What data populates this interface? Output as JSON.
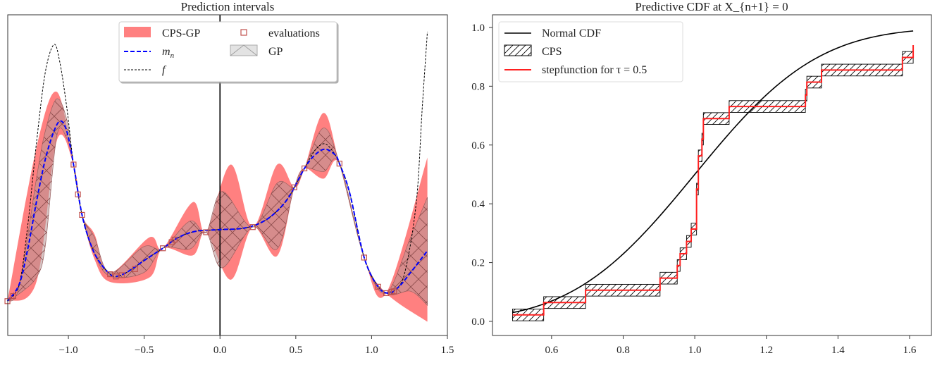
{
  "chart_data": [
    {
      "type": "line",
      "title": "Prediction intervals",
      "xlim": [
        -1.4,
        1.5
      ],
      "ylim": [
        0,
        100
      ],
      "xticks": [
        -1.0,
        -0.5,
        0.0,
        0.5,
        1.0,
        1.5
      ],
      "xtick_labels": [
        "−1.0",
        "−0.5",
        "0.0",
        "0.5",
        "1.0",
        "1.5"
      ],
      "yticks_shown": false,
      "vertical_line_at": 0.0,
      "legend": {
        "placement": "top-center",
        "labels": {
          "cps_gp": "CPS-GP",
          "mean": "m_n",
          "f": "f",
          "evaluations": "evaluations",
          "gp": "GP"
        }
      },
      "colors": {
        "cps_gp": "#ff8080",
        "mean": "#0000ff",
        "f": "#000000",
        "evaluations": "#c0504d",
        "gp_hatch": "#8a4a4a"
      },
      "cps_gp_band": [
        [
          -1.402,
          10.7,
          10.7
        ],
        [
          -1.211,
          16.7,
          58.5
        ],
        [
          -1.077,
          60.7,
          76.0
        ],
        [
          -0.966,
          53.3,
          53.3
        ],
        [
          -0.91,
          37.6,
          37.6
        ],
        [
          -0.828,
          23.8,
          31.6
        ],
        [
          -0.725,
          16.7,
          19.6
        ],
        [
          -0.465,
          18.1,
          30.6
        ],
        [
          -0.377,
          27.2,
          27.2
        ],
        [
          -0.178,
          25.0,
          41.6
        ],
        [
          -0.092,
          32.2,
          32.2
        ],
        [
          0.071,
          17.4,
          53.3
        ],
        [
          0.216,
          33.8,
          33.8
        ],
        [
          0.377,
          24.8,
          53.3
        ],
        [
          0.49,
          46.2,
          46.2
        ],
        [
          0.557,
          52.1,
          52.1
        ],
        [
          0.683,
          48.9,
          69.4
        ],
        [
          0.788,
          53.6,
          53.6
        ],
        [
          0.951,
          24.3,
          24.3
        ],
        [
          1.096,
          13.2,
          13.2
        ],
        [
          1.368,
          4.3,
          55.5
        ]
      ],
      "gp_band": [
        [
          -1.402,
          10.7,
          10.7
        ],
        [
          -1.325,
          13.0,
          15.2
        ],
        [
          -1.211,
          18.1,
          48.9
        ],
        [
          -1.153,
          27.7,
          63.6
        ],
        [
          -1.077,
          62.1,
          73.8
        ],
        [
          -1.01,
          61.4,
          67.2
        ],
        [
          -0.966,
          53.3,
          53.3
        ],
        [
          -0.91,
          37.6,
          37.6
        ],
        [
          -0.828,
          25.5,
          30.6
        ],
        [
          -0.725,
          18.5,
          19.6
        ],
        [
          -0.503,
          19.6,
          27.7
        ],
        [
          -0.377,
          27.2,
          27.2
        ],
        [
          -0.197,
          27.0,
          35.7
        ],
        [
          -0.092,
          32.2,
          32.2
        ],
        [
          0.014,
          21.1,
          44.9
        ],
        [
          0.216,
          33.8,
          33.8
        ],
        [
          0.377,
          27.0,
          47.5
        ],
        [
          0.49,
          46.2,
          46.2
        ],
        [
          0.557,
          52.1,
          52.1
        ],
        [
          0.683,
          51.1,
          64.7
        ],
        [
          0.788,
          53.6,
          53.6
        ],
        [
          0.951,
          24.3,
          24.3
        ],
        [
          1.096,
          13.2,
          13.2
        ],
        [
          1.257,
          13.8,
          30.6
        ],
        [
          1.368,
          9.4,
          43.1
        ]
      ],
      "mean": [
        [
          -1.402,
          10.7
        ],
        [
          -1.325,
          15.9
        ],
        [
          -1.268,
          27.0
        ],
        [
          -1.211,
          41.6
        ],
        [
          -1.153,
          54.8
        ],
        [
          -1.096,
          63.6
        ],
        [
          -1.052,
          66.9
        ],
        [
          -1.01,
          63.6
        ],
        [
          -0.966,
          53.3
        ],
        [
          -0.91,
          37.6
        ],
        [
          -0.847,
          27.7
        ],
        [
          -0.79,
          22.6
        ],
        [
          -0.725,
          19.1
        ],
        [
          -0.687,
          18.4
        ],
        [
          -0.618,
          19.6
        ],
        [
          -0.503,
          23.3
        ],
        [
          -0.377,
          27.2
        ],
        [
          -0.273,
          30.6
        ],
        [
          -0.159,
          32.5
        ],
        [
          -0.005,
          33.0
        ],
        [
          0.148,
          33.4
        ],
        [
          0.262,
          35.0
        ],
        [
          0.358,
          38.0
        ],
        [
          0.453,
          43.1
        ],
        [
          0.557,
          52.1
        ],
        [
          0.626,
          56.3
        ],
        [
          0.693,
          58.1
        ],
        [
          0.76,
          56.3
        ],
        [
          0.788,
          53.6
        ],
        [
          0.855,
          44.5
        ],
        [
          0.951,
          24.3
        ],
        [
          1.043,
          15.2
        ],
        [
          1.114,
          13.2
        ],
        [
          1.18,
          15.2
        ],
        [
          1.257,
          19.6
        ],
        [
          1.368,
          26.4
        ]
      ],
      "f": [
        [
          -1.402,
          10.7
        ],
        [
          -1.325,
          15.9
        ],
        [
          -1.268,
          34.3
        ],
        [
          -1.211,
          59.9
        ],
        [
          -1.153,
          81.9
        ],
        [
          -1.096,
          90.7
        ],
        [
          -1.058,
          85.6
        ],
        [
          -1.01,
          70.9
        ],
        [
          -0.966,
          53.3
        ],
        [
          -0.91,
          37.6
        ],
        [
          -0.847,
          27.7
        ],
        [
          -0.79,
          22.6
        ],
        [
          -0.725,
          19.1
        ],
        [
          -0.687,
          18.4
        ],
        [
          -0.618,
          19.6
        ],
        [
          -0.503,
          23.3
        ],
        [
          -0.377,
          27.2
        ],
        [
          -0.273,
          30.6
        ],
        [
          -0.159,
          32.5
        ],
        [
          -0.005,
          33.0
        ],
        [
          0.148,
          33.4
        ],
        [
          0.262,
          35.0
        ],
        [
          0.358,
          38.0
        ],
        [
          0.453,
          43.1
        ],
        [
          0.557,
          52.1
        ],
        [
          0.626,
          57.7
        ],
        [
          0.687,
          59.8
        ],
        [
          0.74,
          57.7
        ],
        [
          0.788,
          53.6
        ],
        [
          0.855,
          44.5
        ],
        [
          0.951,
          24.3
        ],
        [
          1.043,
          15.2
        ],
        [
          1.114,
          13.2
        ],
        [
          1.148,
          13.8
        ],
        [
          1.219,
          19.6
        ],
        [
          1.295,
          41.6
        ],
        [
          1.334,
          70.9
        ],
        [
          1.368,
          94.7
        ]
      ],
      "evaluations": [
        [
          -1.402,
          10.7
        ],
        [
          -1.364,
          12.3
        ],
        [
          -0.966,
          53.3
        ],
        [
          -0.937,
          44.0
        ],
        [
          -0.91,
          37.6
        ],
        [
          -0.725,
          19.1
        ],
        [
          -0.687,
          18.4
        ],
        [
          -0.648,
          18.8
        ],
        [
          -0.56,
          20.7
        ],
        [
          -0.377,
          27.2
        ],
        [
          -0.319,
          29.1
        ],
        [
          -0.3,
          29.9
        ],
        [
          -0.092,
          32.2
        ],
        [
          0.216,
          33.8
        ],
        [
          0.49,
          46.2
        ],
        [
          0.557,
          52.1
        ],
        [
          0.788,
          53.6
        ],
        [
          0.951,
          24.3
        ],
        [
          1.043,
          15.2
        ],
        [
          1.096,
          13.2
        ],
        [
          1.132,
          13.6
        ],
        [
          1.148,
          13.8
        ]
      ]
    },
    {
      "type": "line",
      "title": "Predictive CDF at X_{n+1} = 0",
      "xlim": [
        0.435,
        1.661
      ],
      "ylim": [
        -0.048,
        1.043
      ],
      "xticks": [
        0.6,
        0.8,
        1.0,
        1.2,
        1.4,
        1.6
      ],
      "xtick_labels": [
        "0.6",
        "0.8",
        "1.0",
        "1.2",
        "1.4",
        "1.6"
      ],
      "yticks": [
        0.0,
        0.2,
        0.4,
        0.6,
        0.8,
        1.0
      ],
      "ytick_labels": [
        "0.0",
        "0.2",
        "0.4",
        "0.6",
        "0.8",
        "1.0"
      ],
      "legend": {
        "placement": "top-left",
        "labels": {
          "normal_cdf": "Normal CDF",
          "cps": "CPS",
          "step": "stepfunction for τ = 0.5"
        }
      },
      "colors": {
        "normal_cdf": "#000000",
        "cps": "#000000",
        "step": "#ff2020"
      },
      "normal_cdf": {
        "mean": 1.0,
        "std": 0.27,
        "x_range": [
          0.491,
          1.61
        ]
      },
      "cps_half_height": 0.02,
      "steps": [
        [
          0.491,
          0.578,
          0.022
        ],
        [
          0.578,
          0.695,
          0.064
        ],
        [
          0.695,
          0.903,
          0.106
        ],
        [
          0.903,
          0.951,
          0.147
        ],
        [
          0.951,
          0.959,
          0.19
        ],
        [
          0.959,
          0.977,
          0.23
        ],
        [
          0.977,
          0.99,
          0.272
        ],
        [
          0.99,
          1.005,
          0.314
        ],
        [
          1.005,
          1.01,
          0.45
        ],
        [
          1.01,
          1.02,
          0.563
        ],
        [
          1.02,
          1.024,
          0.62
        ],
        [
          1.024,
          1.096,
          0.69
        ],
        [
          1.096,
          1.309,
          0.731
        ],
        [
          1.309,
          1.313,
          0.77
        ],
        [
          1.313,
          1.354,
          0.814
        ],
        [
          1.354,
          1.58,
          0.855
        ],
        [
          1.58,
          1.61,
          0.898
        ]
      ],
      "step_end": [
        1.61,
        0.94
      ]
    }
  ]
}
